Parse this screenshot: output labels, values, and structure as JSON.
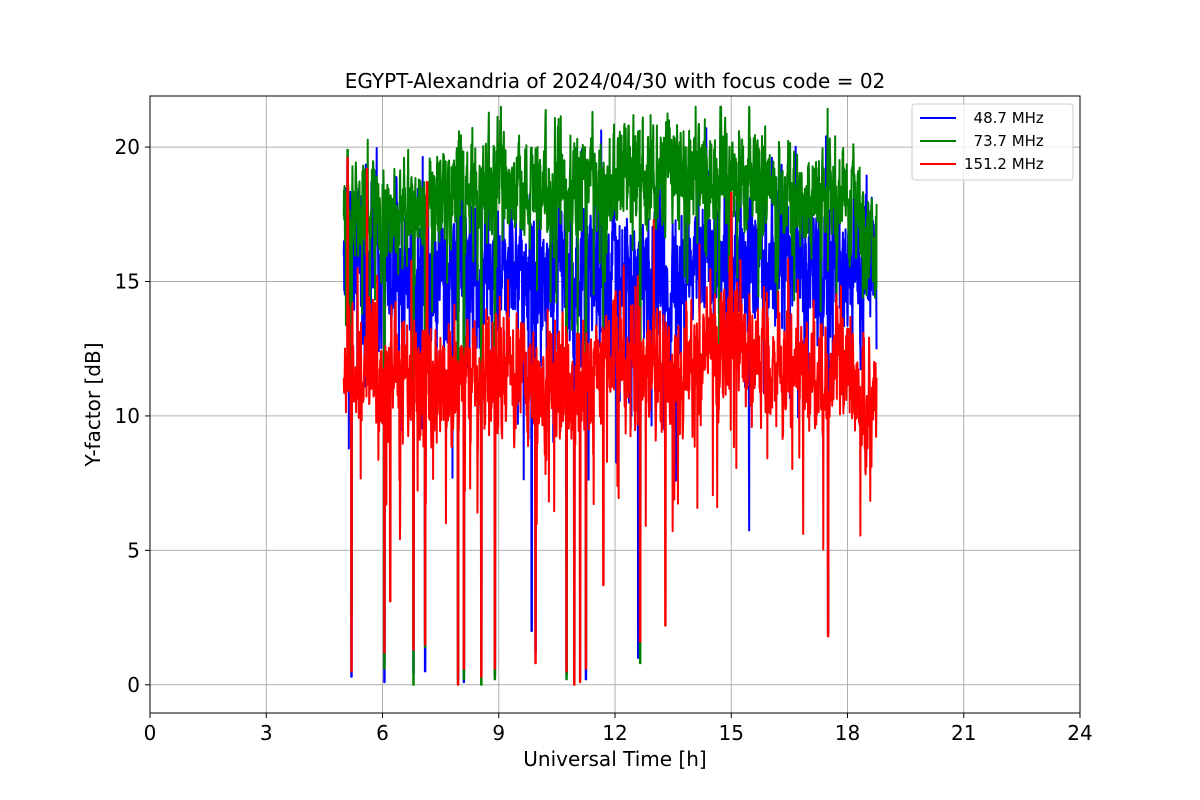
{
  "chart_data": {
    "type": "line",
    "title": "EGYPT-Alexandria of 2024/04/30 with focus code = 02",
    "xlabel": "Universal Time [h]",
    "ylabel": "Y-factor [dB]",
    "xlim": [
      0,
      24
    ],
    "ylim": [
      -1.05,
      21.9
    ],
    "xticks": [
      0,
      3,
      6,
      9,
      12,
      15,
      18,
      21,
      24
    ],
    "xtick_labels": [
      "0",
      "3",
      "6",
      "9",
      "12",
      "15",
      "18",
      "21",
      "24"
    ],
    "yticks": [
      0,
      5,
      10,
      15,
      20
    ],
    "ytick_labels": [
      "0",
      "5",
      "10",
      "15",
      "20"
    ],
    "grid": true,
    "legend_position": "top-right",
    "series": [
      {
        "name": "  48.7 MHz",
        "color": "#0000ff",
        "x_range": [
          5.0,
          18.75
        ],
        "baseline": [
          [
            5.0,
            16.2
          ],
          [
            6.0,
            15.4
          ],
          [
            7.5,
            15.6
          ],
          [
            9.0,
            15.4
          ],
          [
            10.5,
            15.4
          ],
          [
            12.0,
            14.8
          ],
          [
            13.5,
            15.2
          ],
          [
            15.0,
            16.0
          ],
          [
            16.5,
            16.0
          ],
          [
            18.0,
            15.6
          ],
          [
            18.75,
            14.6
          ]
        ],
        "noise": 1.8,
        "dips": [
          [
            5.2,
            0.3
          ],
          [
            6.05,
            0.1
          ],
          [
            6.8,
            0.4
          ],
          [
            7.1,
            0.5
          ],
          [
            7.95,
            0.2
          ],
          [
            8.1,
            0.1
          ],
          [
            8.55,
            0.6
          ],
          [
            8.9,
            0.3
          ],
          [
            9.85,
            2.0
          ],
          [
            9.95,
            1.2
          ],
          [
            10.75,
            0.4
          ],
          [
            10.95,
            0.1
          ],
          [
            11.25,
            0.2
          ],
          [
            12.6,
            1.0
          ],
          [
            17.5,
            1.9
          ]
        ],
        "peaks": [
          [
            14.35,
            20.7
          ],
          [
            17.45,
            20.4
          ]
        ]
      },
      {
        "name": "  73.7 MHz",
        "color": "#008000",
        "x_range": [
          5.0,
          18.75
        ],
        "baseline": [
          [
            5.0,
            17.6
          ],
          [
            6.0,
            17.2
          ],
          [
            7.5,
            18.2
          ],
          [
            9.0,
            18.6
          ],
          [
            10.5,
            18.4
          ],
          [
            12.0,
            18.8
          ],
          [
            13.5,
            19.0
          ],
          [
            15.0,
            19.2
          ],
          [
            16.5,
            18.2
          ],
          [
            18.0,
            18.2
          ],
          [
            18.75,
            16.2
          ]
        ],
        "noise": 1.2,
        "dips": [
          [
            5.2,
            2.6
          ],
          [
            6.05,
            0.6
          ],
          [
            6.8,
            0.0
          ],
          [
            7.1,
            1.4
          ],
          [
            7.95,
            0.0
          ],
          [
            8.1,
            0.2
          ],
          [
            8.55,
            0.0
          ],
          [
            8.9,
            0.2
          ],
          [
            10.75,
            0.2
          ],
          [
            11.25,
            1.5
          ],
          [
            12.65,
            0.8
          ]
        ],
        "peaks": [
          [
            5.1,
            19.9
          ],
          [
            9.0,
            20.1
          ],
          [
            12.35,
            20.8
          ]
        ]
      },
      {
        "name": "151.2 MHz",
        "color": "#ff0000",
        "x_range": [
          5.0,
          18.75
        ],
        "baseline": [
          [
            5.0,
            11.6
          ],
          [
            6.0,
            11.6
          ],
          [
            7.5,
            11.2
          ],
          [
            9.0,
            11.6
          ],
          [
            10.5,
            11.2
          ],
          [
            12.0,
            11.8
          ],
          [
            13.5,
            11.6
          ],
          [
            15.0,
            12.8
          ],
          [
            16.5,
            11.8
          ],
          [
            18.0,
            11.6
          ],
          [
            18.75,
            10.4
          ]
        ],
        "noise": 1.4,
        "dips": [
          [
            5.2,
            0.5
          ],
          [
            6.05,
            1.2
          ],
          [
            6.2,
            3.1
          ],
          [
            6.8,
            1.3
          ],
          [
            7.1,
            1.5
          ],
          [
            7.95,
            0.0
          ],
          [
            8.1,
            0.6
          ],
          [
            8.55,
            0.3
          ],
          [
            8.9,
            0.6
          ],
          [
            9.95,
            0.8
          ],
          [
            10.75,
            0.5
          ],
          [
            10.95,
            0.0
          ],
          [
            11.1,
            0.1
          ],
          [
            11.25,
            0.6
          ],
          [
            11.7,
            3.7
          ],
          [
            12.65,
            1.6
          ],
          [
            13.3,
            2.2
          ],
          [
            17.5,
            1.8
          ]
        ],
        "peaks": [
          [
            5.1,
            19.6
          ],
          [
            5.6,
            19.2
          ],
          [
            7.15,
            18.7
          ],
          [
            15.0,
            18.3
          ]
        ]
      }
    ]
  }
}
